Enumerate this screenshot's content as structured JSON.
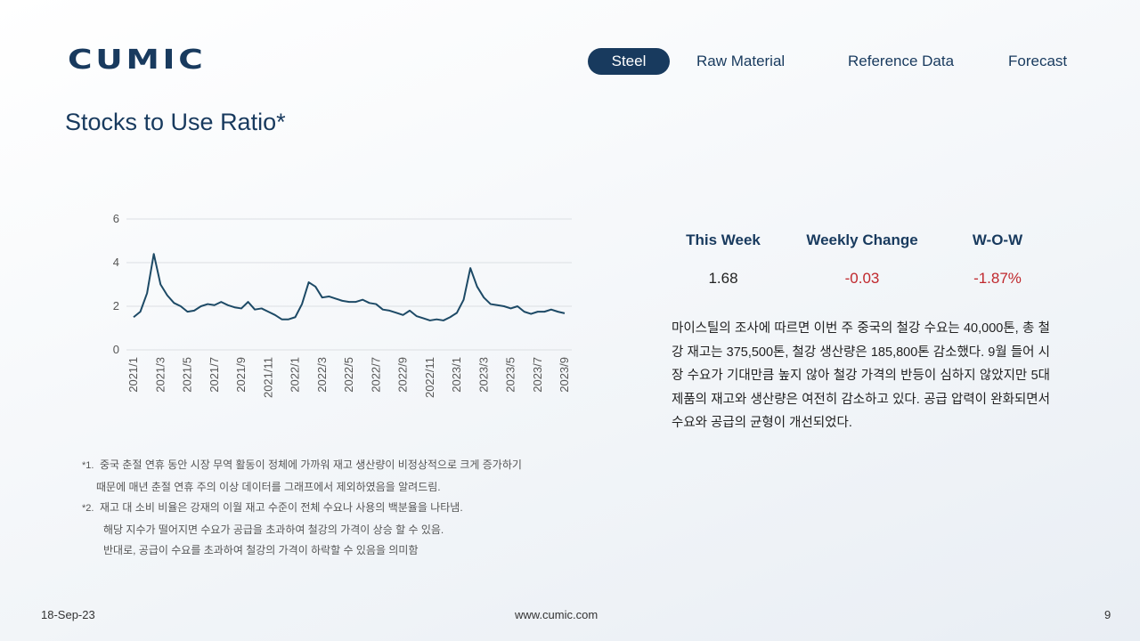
{
  "header": {
    "logo": "CUMIC",
    "nav": [
      "Steel",
      "Raw Material",
      "Reference Data",
      "Forecast"
    ],
    "active_nav": 0
  },
  "title": "Stocks to Use Ratio*",
  "chart_data": {
    "type": "line",
    "categories": [
      "2021/1",
      null,
      null,
      null,
      "2021/3",
      null,
      null,
      null,
      "2021/5",
      null,
      null,
      null,
      "2021/7",
      null,
      null,
      null,
      "2021/9",
      null,
      null,
      null,
      "2021/11",
      null,
      null,
      null,
      "2022/1",
      null,
      null,
      null,
      "2022/3",
      null,
      null,
      null,
      "2022/5",
      null,
      null,
      null,
      "2022/7",
      null,
      null,
      null,
      "2022/9",
      null,
      null,
      null,
      "2022/11",
      null,
      null,
      null,
      "2023/1",
      null,
      null,
      null,
      "2023/3",
      null,
      null,
      null,
      "2023/5",
      null,
      null,
      null,
      "2023/7",
      null,
      null,
      null,
      "2023/9"
    ],
    "values": [
      1.5,
      1.75,
      2.6,
      4.4,
      3.0,
      2.5,
      2.15,
      2.0,
      1.75,
      1.8,
      2.0,
      2.1,
      2.05,
      2.2,
      2.05,
      1.95,
      1.9,
      2.2,
      1.85,
      1.9,
      1.75,
      1.6,
      1.4,
      1.4,
      1.5,
      2.1,
      3.1,
      2.9,
      2.4,
      2.45,
      2.35,
      2.25,
      2.2,
      2.2,
      2.3,
      2.15,
      2.1,
      1.85,
      1.8,
      1.7,
      1.6,
      1.8,
      1.55,
      1.45,
      1.35,
      1.4,
      1.35,
      1.5,
      1.7,
      2.3,
      3.75,
      2.9,
      2.4,
      2.1,
      2.05,
      2.0,
      1.9,
      2.0,
      1.75,
      1.65,
      1.75,
      1.75,
      1.85,
      1.75,
      1.68
    ],
    "color": "#1d4a66",
    "ylim": [
      0,
      6
    ],
    "yticks": [
      0,
      2,
      4,
      6
    ],
    "grid": true
  },
  "stats": {
    "headers": [
      "This Week",
      "Weekly Change",
      "W-O-W"
    ],
    "values": [
      "1.68",
      "-0.03",
      "-1.87%"
    ]
  },
  "summary": "마이스틸의 조사에 따르면 이번 주 중국의 철강 수요는 40,000톤, 총 철강 재고는 375,500톤, 철강 생산량은 185,800톤 감소했다. 9월 들어 시장 수요가 기대만큼 높지 않아 철강 가격의 반등이 심하지 않았지만 5대 제품의 재고와 생산량은 여전히 감소하고 있다. 공급 압력이 완화되면서 수요와 공급의 균형이 개선되었다.",
  "footnotes": [
    {
      "marker": "*1.",
      "lines": [
        "중국 춘절 연휴 동안 시장 무역 활동이 정체에 가까워 재고 생산량이 비정상적으로 크게 증가하기",
        "때문에 매년 춘절 연휴 주의 이상 데이터를 그래프에서 제외하였음을 알려드림."
      ]
    },
    {
      "marker": "*2.",
      "lines": [
        "재고 대 소비 비율은 강재의 이월 재고 수준이 전체 수요나 사용의 백분율을 나타냄.",
        "해당 지수가 떨어지면 수요가 공급을 초과하여 철강의 가격이 상승 할 수 있음.",
        "반대로, 공급이 수요를 초과하여 철강의 가격이 하락할 수 있음을 의미함"
      ]
    }
  ],
  "footer": {
    "date": "18-Sep-23",
    "url": "www.cumic.com",
    "page": "9"
  }
}
